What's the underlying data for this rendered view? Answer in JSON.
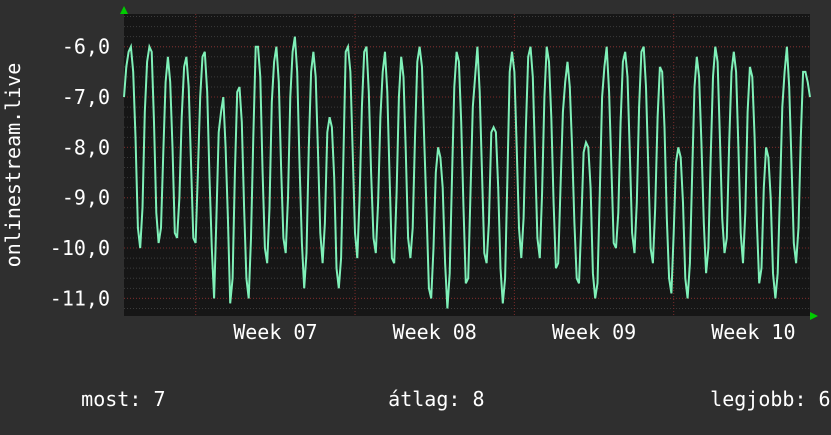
{
  "chart_data": {
    "type": "line",
    "title": "",
    "ylabel": "onlinestream.live",
    "xlabel": "",
    "ylim": [
      -11.35,
      -5.35
    ],
    "yticks": [
      -11.0,
      -10.0,
      -9.0,
      -8.0,
      -7.0,
      -6.0
    ],
    "ytick_labels": [
      "-11,0",
      "-10,0",
      "-9,0",
      "-8,0",
      "-7,0",
      "-6,0"
    ],
    "xtick_labels": [
      "Week 07",
      "Week 08",
      "Week 09",
      "Week 10"
    ],
    "grid": true,
    "colors": {
      "background": "#2f2f2f",
      "plot_background": "#161616",
      "grid_major": "#7a2a2a",
      "grid_minor": "#3c3c3c",
      "line": "#7ff0b8",
      "axis_arrow": "#00cc00",
      "text": "#ffffff"
    },
    "series": [
      {
        "name": "",
        "values": [
          -7.0,
          -6.4,
          -6.1,
          -6.0,
          -6.5,
          -7.8,
          -9.6,
          -10.0,
          -9.2,
          -7.3,
          -6.3,
          -6.0,
          -6.1,
          -7.5,
          -9.3,
          -9.9,
          -9.6,
          -8.1,
          -6.7,
          -6.2,
          -6.7,
          -8.0,
          -9.7,
          -9.8,
          -9.0,
          -7.4,
          -6.4,
          -6.2,
          -6.8,
          -8.3,
          -9.8,
          -9.9,
          -8.5,
          -7.0,
          -6.2,
          -6.1,
          -6.9,
          -8.6,
          -10.0,
          -11.0,
          -9.4,
          -7.7,
          -7.3,
          -7.0,
          -8.0,
          -9.4,
          -11.1,
          -10.6,
          -8.5,
          -6.9,
          -6.8,
          -7.5,
          -9.2,
          -10.6,
          -11.0,
          -9.8,
          -7.8,
          -6.0,
          -6.0,
          -6.6,
          -8.5,
          -10.0,
          -10.3,
          -9.2,
          -7.1,
          -6.3,
          -6.0,
          -6.7,
          -8.4,
          -9.8,
          -10.1,
          -9.0,
          -7.0,
          -6.1,
          -5.8,
          -6.5,
          -8.3,
          -9.9,
          -10.8,
          -10.1,
          -8.0,
          -6.5,
          -6.1,
          -6.6,
          -8.1,
          -9.7,
          -10.3,
          -9.5,
          -7.7,
          -7.4,
          -7.6,
          -8.6,
          -10.4,
          -10.8,
          -10.2,
          -8.2,
          -6.1,
          -6.0,
          -6.5,
          -8.1,
          -9.7,
          -10.2,
          -9.0,
          -7.2,
          -6.1,
          -6.0,
          -6.9,
          -8.5,
          -9.8,
          -10.1,
          -9.1,
          -7.4,
          -6.5,
          -6.1,
          -6.9,
          -8.6,
          -10.2,
          -10.3,
          -8.9,
          -7.0,
          -6.2,
          -6.6,
          -8.1,
          -9.8,
          -10.2,
          -9.6,
          -7.8,
          -6.3,
          -6.0,
          -6.4,
          -7.9,
          -9.3,
          -10.8,
          -11.0,
          -10.0,
          -8.5,
          -8.0,
          -8.2,
          -8.8,
          -10.3,
          -11.2,
          -10.5,
          -8.6,
          -6.8,
          -6.1,
          -6.3,
          -7.5,
          -9.2,
          -10.7,
          -10.6,
          -8.9,
          -7.2,
          -6.6,
          -6.0,
          -6.9,
          -8.5,
          -10.1,
          -10.3,
          -9.5,
          -7.7,
          -7.6,
          -7.7,
          -8.8,
          -10.4,
          -11.1,
          -10.6,
          -8.6,
          -6.5,
          -6.1,
          -6.5,
          -8.0,
          -9.6,
          -10.2,
          -9.4,
          -7.6,
          -6.2,
          -6.0,
          -6.6,
          -8.2,
          -9.8,
          -10.2,
          -8.9,
          -7.0,
          -6.0,
          -6.3,
          -7.4,
          -9.1,
          -10.4,
          -10.3,
          -8.8,
          -7.3,
          -6.7,
          -6.3,
          -6.8,
          -8.0,
          -9.5,
          -10.6,
          -10.7,
          -9.5,
          -8.1,
          -7.9,
          -8.0,
          -8.8,
          -10.5,
          -11.0,
          -10.7,
          -8.9,
          -7.0,
          -6.4,
          -6.0,
          -6.9,
          -8.4,
          -9.9,
          -10.0,
          -9.3,
          -7.5,
          -6.3,
          -6.1,
          -6.6,
          -8.1,
          -9.7,
          -10.1,
          -9.1,
          -7.2,
          -6.1,
          -6.0,
          -6.8,
          -8.4,
          -10.0,
          -10.3,
          -9.2,
          -7.4,
          -6.4,
          -6.5,
          -7.6,
          -9.4,
          -10.6,
          -10.9,
          -9.7,
          -8.3,
          -8.0,
          -8.2,
          -9.1,
          -10.6,
          -11.0,
          -10.3,
          -8.5,
          -6.8,
          -6.2,
          -6.6,
          -7.9,
          -9.5,
          -10.5,
          -10.0,
          -8.2,
          -6.6,
          -6.0,
          -6.3,
          -7.8,
          -9.4,
          -10.1,
          -9.8,
          -7.9,
          -6.5,
          -6.1,
          -6.5,
          -8.0,
          -9.7,
          -10.3,
          -9.3,
          -7.3,
          -6.4,
          -6.6,
          -7.8,
          -9.5,
          -10.7,
          -10.4,
          -8.8,
          -8.0,
          -8.2,
          -9.0,
          -10.5,
          -11.0,
          -10.5,
          -8.9,
          -7.2,
          -6.5,
          -6.0,
          -6.8,
          -8.3,
          -9.9,
          -10.3,
          -9.6,
          -7.8,
          -6.5,
          -6.5,
          -6.7,
          -7.0
        ]
      }
    ]
  },
  "footer": {
    "now_label": "most:",
    "now_value": "7",
    "avg_label": "átlag:",
    "avg_value": "8",
    "best_label": "legjobb:",
    "best_value": "6"
  }
}
